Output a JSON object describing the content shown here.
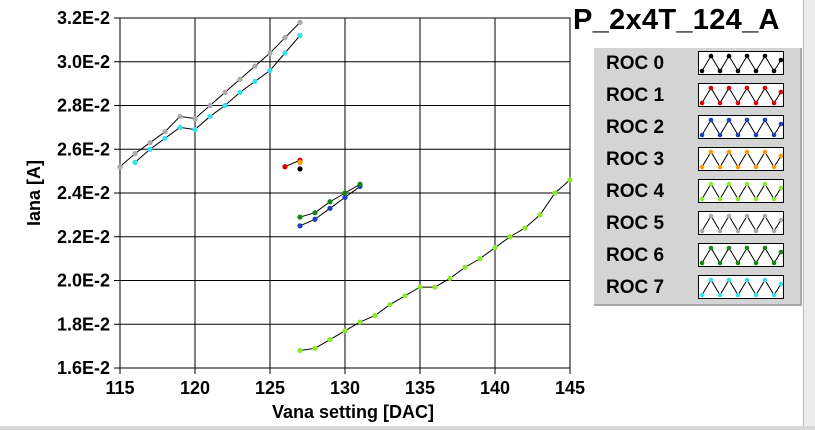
{
  "title": "P_2x4T_124_A",
  "chart_data": {
    "type": "line",
    "title": "P_2x4T_124_A",
    "xlabel": "Vana setting [DAC]",
    "ylabel": "Iana [A]",
    "xlim": [
      115,
      145
    ],
    "ylim": [
      0.016,
      0.032
    ],
    "x_ticks": [
      115,
      120,
      125,
      130,
      135,
      140,
      145
    ],
    "y_ticks": [
      0.016,
      0.018,
      0.02,
      0.022,
      0.024,
      0.026,
      0.028,
      0.03,
      0.032
    ],
    "x_tick_labels": [
      "115",
      "120",
      "125",
      "130",
      "135",
      "140",
      "145"
    ],
    "y_tick_labels": [
      "1.6E-2",
      "1.8E-2",
      "2.0E-2",
      "2.2E-2",
      "2.4E-2",
      "2.6E-2",
      "2.8E-2",
      "3.0E-2",
      "3.2E-2"
    ],
    "grid": true,
    "legend_position": "right",
    "series": [
      {
        "name": "ROC 0",
        "color": "#000000",
        "x": [
          127
        ],
        "y": [
          0.0251
        ]
      },
      {
        "name": "ROC 1",
        "color": "#dd0000",
        "x": [
          126,
          127
        ],
        "y": [
          0.0252,
          0.0255
        ]
      },
      {
        "name": "ROC 2",
        "color": "#1a3fc0",
        "x": [
          127,
          128,
          129,
          130,
          131
        ],
        "y": [
          0.0225,
          0.0228,
          0.0233,
          0.0238,
          0.0243
        ]
      },
      {
        "name": "ROC 3",
        "color": "#ff9900",
        "x": [
          127
        ],
        "y": [
          0.0254
        ]
      },
      {
        "name": "ROC 4",
        "color": "#88e82a",
        "x": [
          127,
          128,
          129,
          130,
          131,
          132,
          133,
          134,
          135,
          136,
          137,
          138,
          139,
          140,
          141,
          142,
          143,
          144,
          145
        ],
        "y": [
          0.0168,
          0.0169,
          0.0173,
          0.0177,
          0.0181,
          0.0184,
          0.0189,
          0.0193,
          0.0197,
          0.0197,
          0.0201,
          0.0206,
          0.021,
          0.0215,
          0.022,
          0.0224,
          0.023,
          0.024,
          0.0246
        ]
      },
      {
        "name": "ROC 5",
        "color": "#aaaaaa",
        "x": [
          115,
          116,
          117,
          118,
          119,
          120,
          121,
          122,
          123,
          124,
          125,
          126,
          127
        ],
        "y": [
          0.0252,
          0.0258,
          0.0263,
          0.0268,
          0.0275,
          0.0274,
          0.028,
          0.0286,
          0.0292,
          0.0298,
          0.0304,
          0.0311,
          0.0318
        ]
      },
      {
        "name": "ROC 6",
        "color": "#118811",
        "x": [
          127,
          128,
          129,
          130,
          131
        ],
        "y": [
          0.0229,
          0.0231,
          0.0236,
          0.024,
          0.0244
        ]
      },
      {
        "name": "ROC 7",
        "color": "#33e0f0",
        "x": [
          116,
          117,
          118,
          119,
          120,
          121,
          122,
          123,
          124,
          125,
          126,
          127
        ],
        "y": [
          0.0254,
          0.026,
          0.0265,
          0.027,
          0.0269,
          0.0275,
          0.028,
          0.0286,
          0.0291,
          0.0296,
          0.0304,
          0.0312
        ]
      }
    ]
  }
}
